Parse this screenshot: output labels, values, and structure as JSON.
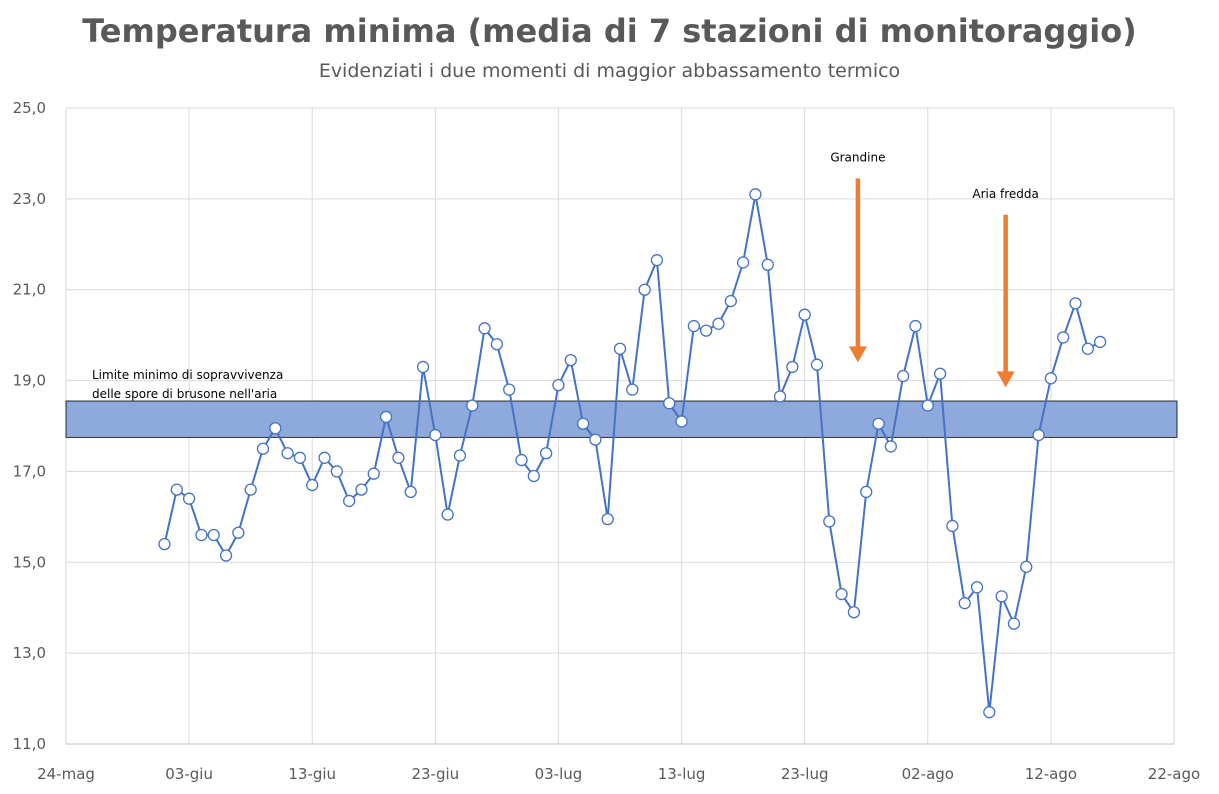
{
  "chart_data": {
    "type": "line",
    "title": "Temperatura minima (media di 7 stazioni di monitoraggio)",
    "subtitle": "Evidenziati i due momenti di maggior abbassamento termico",
    "xlabel": "",
    "ylabel": "",
    "ylim": [
      11,
      25
    ],
    "xlim": [
      "2024-05-24",
      "2024-08-22"
    ],
    "y_ticks": [
      {
        "value": 11,
        "label": "11,0"
      },
      {
        "value": 13,
        "label": "13,0"
      },
      {
        "value": 15,
        "label": "15,0"
      },
      {
        "value": 17,
        "label": "17,0"
      },
      {
        "value": 19,
        "label": "19,0"
      },
      {
        "value": 21,
        "label": "21,0"
      },
      {
        "value": 23,
        "label": "23,0"
      },
      {
        "value": 25,
        "label": "25,0"
      }
    ],
    "x_ticks": [
      {
        "date": "2024-05-24",
        "label": "24-mag"
      },
      {
        "date": "2024-06-03",
        "label": "03-giu"
      },
      {
        "date": "2024-06-13",
        "label": "13-giu"
      },
      {
        "date": "2024-06-23",
        "label": "23-giu"
      },
      {
        "date": "2024-07-03",
        "label": "03-lug"
      },
      {
        "date": "2024-07-13",
        "label": "13-lug"
      },
      {
        "date": "2024-07-23",
        "label": "23-lug"
      },
      {
        "date": "2024-08-02",
        "label": "02-ago"
      },
      {
        "date": "2024-08-12",
        "label": "12-ago"
      },
      {
        "date": "2024-08-22",
        "label": "22-ago"
      }
    ],
    "grid": true,
    "series_color": "#4472C4",
    "points": [
      {
        "x": "2024-06-01",
        "y": 15.4
      },
      {
        "x": "2024-06-02",
        "y": 16.6
      },
      {
        "x": "2024-06-03",
        "y": 16.4
      },
      {
        "x": "2024-06-04",
        "y": 15.6
      },
      {
        "x": "2024-06-05",
        "y": 15.6
      },
      {
        "x": "2024-06-06",
        "y": 15.15
      },
      {
        "x": "2024-06-07",
        "y": 15.65
      },
      {
        "x": "2024-06-08",
        "y": 16.6
      },
      {
        "x": "2024-06-09",
        "y": 17.5
      },
      {
        "x": "2024-06-10",
        "y": 17.95
      },
      {
        "x": "2024-06-11",
        "y": 17.4
      },
      {
        "x": "2024-06-12",
        "y": 17.3
      },
      {
        "x": "2024-06-13",
        "y": 16.7
      },
      {
        "x": "2024-06-14",
        "y": 17.3
      },
      {
        "x": "2024-06-15",
        "y": 17.0
      },
      {
        "x": "2024-06-16",
        "y": 16.35
      },
      {
        "x": "2024-06-17",
        "y": 16.6
      },
      {
        "x": "2024-06-18",
        "y": 16.95
      },
      {
        "x": "2024-06-19",
        "y": 18.2
      },
      {
        "x": "2024-06-20",
        "y": 17.3
      },
      {
        "x": "2024-06-21",
        "y": 16.55
      },
      {
        "x": "2024-06-22",
        "y": 19.3
      },
      {
        "x": "2024-06-23",
        "y": 17.8
      },
      {
        "x": "2024-06-24",
        "y": 16.05
      },
      {
        "x": "2024-06-25",
        "y": 17.35
      },
      {
        "x": "2024-06-26",
        "y": 18.45
      },
      {
        "x": "2024-06-27",
        "y": 20.15
      },
      {
        "x": "2024-06-28",
        "y": 19.8
      },
      {
        "x": "2024-06-29",
        "y": 18.8
      },
      {
        "x": "2024-06-30",
        "y": 17.25
      },
      {
        "x": "2024-07-01",
        "y": 16.9
      },
      {
        "x": "2024-07-02",
        "y": 17.4
      },
      {
        "x": "2024-07-03",
        "y": 18.9
      },
      {
        "x": "2024-07-04",
        "y": 19.45
      },
      {
        "x": "2024-07-05",
        "y": 18.05
      },
      {
        "x": "2024-07-06",
        "y": 17.7
      },
      {
        "x": "2024-07-07",
        "y": 15.95
      },
      {
        "x": "2024-07-08",
        "y": 19.7
      },
      {
        "x": "2024-07-09",
        "y": 18.8
      },
      {
        "x": "2024-07-10",
        "y": 21.0
      },
      {
        "x": "2024-07-11",
        "y": 21.65
      },
      {
        "x": "2024-07-12",
        "y": 18.5
      },
      {
        "x": "2024-07-13",
        "y": 18.1
      },
      {
        "x": "2024-07-14",
        "y": 20.2
      },
      {
        "x": "2024-07-15",
        "y": 20.1
      },
      {
        "x": "2024-07-16",
        "y": 20.25
      },
      {
        "x": "2024-07-17",
        "y": 20.75
      },
      {
        "x": "2024-07-18",
        "y": 21.6
      },
      {
        "x": "2024-07-19",
        "y": 23.1
      },
      {
        "x": "2024-07-20",
        "y": 21.55
      },
      {
        "x": "2024-07-21",
        "y": 18.65
      },
      {
        "x": "2024-07-22",
        "y": 19.3
      },
      {
        "x": "2024-07-23",
        "y": 20.45
      },
      {
        "x": "2024-07-24",
        "y": 19.35
      },
      {
        "x": "2024-07-25",
        "y": 15.9
      },
      {
        "x": "2024-07-26",
        "y": 14.3
      },
      {
        "x": "2024-07-27",
        "y": 13.9
      },
      {
        "x": "2024-07-28",
        "y": 16.55
      },
      {
        "x": "2024-07-29",
        "y": 18.05
      },
      {
        "x": "2024-07-30",
        "y": 17.55
      },
      {
        "x": "2024-07-31",
        "y": 19.1
      },
      {
        "x": "2024-08-01",
        "y": 20.2
      },
      {
        "x": "2024-08-02",
        "y": 18.45
      },
      {
        "x": "2024-08-03",
        "y": 19.15
      },
      {
        "x": "2024-08-04",
        "y": 15.8
      },
      {
        "x": "2024-08-05",
        "y": 14.1
      },
      {
        "x": "2024-08-06",
        "y": 14.45
      },
      {
        "x": "2024-08-07",
        "y": 11.7
      },
      {
        "x": "2024-08-08",
        "y": 14.25
      },
      {
        "x": "2024-08-09",
        "y": 13.65
      },
      {
        "x": "2024-08-10",
        "y": 14.9
      },
      {
        "x": "2024-08-11",
        "y": 17.8
      },
      {
        "x": "2024-08-12",
        "y": 19.05
      },
      {
        "x": "2024-08-13",
        "y": 19.95
      },
      {
        "x": "2024-08-14",
        "y": 20.7
      },
      {
        "x": "2024-08-15",
        "y": 19.7
      },
      {
        "x": "2024-08-16",
        "y": 19.85
      }
    ],
    "band": {
      "y_from": 17.75,
      "y_to": 18.55,
      "color": "#8EA9DB",
      "label_line1": "Limite minimo di sopravvivenza",
      "label_line2": "delle spore di brusone nell'aria"
    },
    "annotations": [
      {
        "text": "Grandine",
        "arrow_date": "2024-07-27",
        "arrow_from_y": 23.45,
        "arrow_to_y": 19.4,
        "color": "#ED7D31"
      },
      {
        "text": "Aria fredda",
        "arrow_date": "2024-08-08",
        "arrow_from_y": 22.65,
        "arrow_to_y": 18.85,
        "color": "#ED7D31"
      }
    ]
  }
}
